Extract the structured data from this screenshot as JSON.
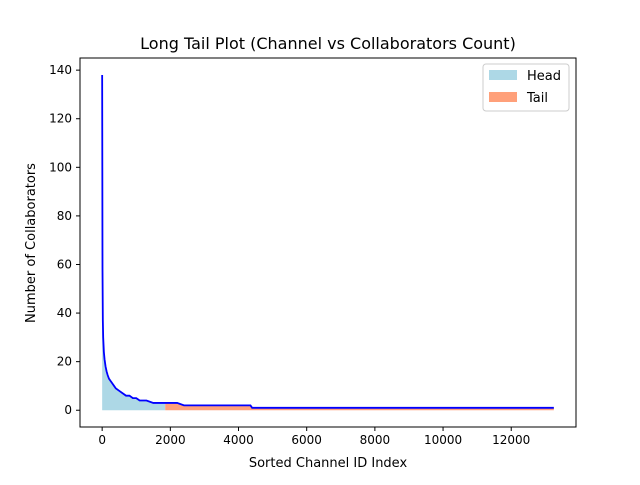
{
  "chart_data": {
    "type": "area",
    "title": "Long Tail Plot (Channel vs Collaborators Count)",
    "xlabel": "Sorted Channel ID Index",
    "ylabel": "Number of Collaborators",
    "xlim": [
      -650,
      13900
    ],
    "ylim": [
      -6.9,
      145.0
    ],
    "x_ticks": [
      0,
      2000,
      4000,
      6000,
      8000,
      10000,
      12000
    ],
    "x_tick_labels": [
      "0",
      "2000",
      "4000",
      "6000",
      "8000",
      "10000",
      "12000"
    ],
    "y_ticks": [
      0,
      20,
      40,
      60,
      80,
      100,
      120,
      140
    ],
    "y_tick_labels": [
      "0",
      "20",
      "40",
      "60",
      "80",
      "100",
      "120",
      "140"
    ],
    "grid": false,
    "legend_position": "top-right",
    "head_tail_split_x": 1850,
    "legend": [
      {
        "label": "Head",
        "color": "#add8e6"
      },
      {
        "label": "Tail",
        "color": "#ffa07a"
      }
    ],
    "line_color": "#0000ff",
    "head_color": "#add8e6",
    "tail_color": "#ffa07a",
    "series": [
      {
        "x": [
          0,
          5,
          10,
          20,
          30,
          50,
          70,
          100,
          130,
          160,
          200,
          250,
          300,
          350,
          400,
          500,
          600,
          700,
          800,
          900,
          1000,
          1100,
          1300,
          1500,
          1700,
          1850,
          2000,
          2200,
          2400,
          2600,
          3000,
          3500,
          4000,
          4350,
          4400,
          5000,
          6000,
          8000,
          10000,
          12000,
          13250
        ],
        "values": [
          138,
          100,
          58,
          37,
          30,
          24,
          21,
          18,
          16,
          14.5,
          13,
          12,
          11,
          10,
          9,
          8,
          7,
          6,
          6,
          5,
          5,
          4,
          4,
          3,
          3,
          3,
          3,
          3,
          2,
          2,
          2,
          2,
          2,
          2,
          1,
          1,
          1,
          1,
          1,
          1,
          1
        ]
      }
    ]
  }
}
